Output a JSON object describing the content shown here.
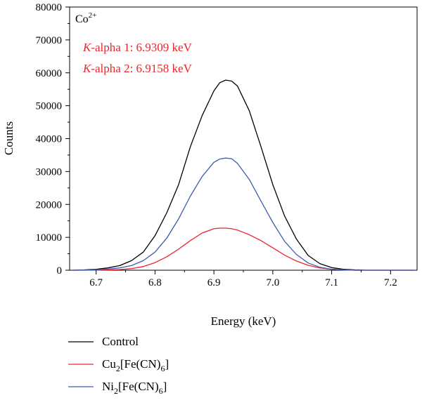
{
  "chart_data": {
    "type": "line",
    "xlabel": "Energy (keV)",
    "ylabel": "Counts",
    "xlim": [
      6.655,
      7.245
    ],
    "ylim": [
      0,
      80000
    ],
    "x_ticks": [
      6.7,
      6.8,
      6.9,
      7.0,
      7.1,
      7.2
    ],
    "x_tick_labels": [
      "6.7",
      "6.8",
      "6.9",
      "7.0",
      "7.1",
      "7.2"
    ],
    "y_ticks": [
      0,
      10000,
      20000,
      30000,
      40000,
      50000,
      60000,
      70000,
      80000
    ],
    "y_tick_labels": [
      "0",
      "10000",
      "20000",
      "30000",
      "40000",
      "50000",
      "60000",
      "70000",
      "80000"
    ],
    "grid": false,
    "legend_position": "bottom",
    "annotations": {
      "ion": {
        "base": "Co",
        "sup": "2+"
      },
      "line1": {
        "italic": "K",
        "rest": "-alpha 1: 6.9309 keV",
        "color": "#e8262b"
      },
      "line2": {
        "italic": "K",
        "rest": "-alpha 2: 6.9158 keV",
        "color": "#e8262b"
      }
    },
    "x": [
      6.66,
      6.68,
      6.7,
      6.72,
      6.74,
      6.76,
      6.78,
      6.8,
      6.82,
      6.84,
      6.86,
      6.88,
      6.9,
      6.91,
      6.92,
      6.93,
      6.94,
      6.96,
      6.98,
      7.0,
      7.02,
      7.04,
      7.06,
      7.08,
      7.1,
      7.12,
      7.14,
      7.16,
      7.18,
      7.2,
      7.22,
      7.24
    ],
    "series": [
      {
        "name": "Control",
        "legend_parts": [
          {
            "t": "Control"
          }
        ],
        "color": "#000000",
        "values": [
          0,
          100,
          300,
          700,
          1400,
          2900,
          5500,
          10500,
          17500,
          26000,
          37500,
          47000,
          54500,
          57000,
          57800,
          57500,
          56000,
          48500,
          37500,
          26000,
          16500,
          9500,
          4500,
          2000,
          800,
          300,
          100,
          0,
          0,
          0,
          0,
          0
        ]
      },
      {
        "name": "Cu2[Fe(CN)6]",
        "legend_parts": [
          {
            "t": "Cu"
          },
          {
            "t": "2",
            "sub": true
          },
          {
            "t": "[Fe(CN)"
          },
          {
            "t": "6",
            "sub": true
          },
          {
            "t": "]"
          }
        ],
        "color": "#e8262b",
        "values": [
          0,
          0,
          50,
          100,
          200,
          500,
          1100,
          2300,
          4100,
          6400,
          9000,
          11300,
          12600,
          12800,
          12800,
          12600,
          12200,
          10800,
          9000,
          6800,
          4600,
          2800,
          1500,
          700,
          300,
          100,
          0,
          0,
          0,
          0,
          0,
          0
        ]
      },
      {
        "name": "Ni2[Fe(CN)6]",
        "legend_parts": [
          {
            "t": "Ni"
          },
          {
            "t": "2",
            "sub": true
          },
          {
            "t": "[Fe(CN)"
          },
          {
            "t": "6",
            "sub": true
          },
          {
            "t": "]"
          }
        ],
        "color": "#3d5bb0",
        "values": [
          0,
          50,
          150,
          350,
          700,
          1400,
          2900,
          5500,
          9800,
          15600,
          22500,
          28500,
          32800,
          33800,
          34100,
          33900,
          32500,
          27600,
          21000,
          14500,
          8800,
          4800,
          2200,
          900,
          300,
          100,
          0,
          0,
          0,
          0,
          0,
          0
        ]
      }
    ]
  }
}
